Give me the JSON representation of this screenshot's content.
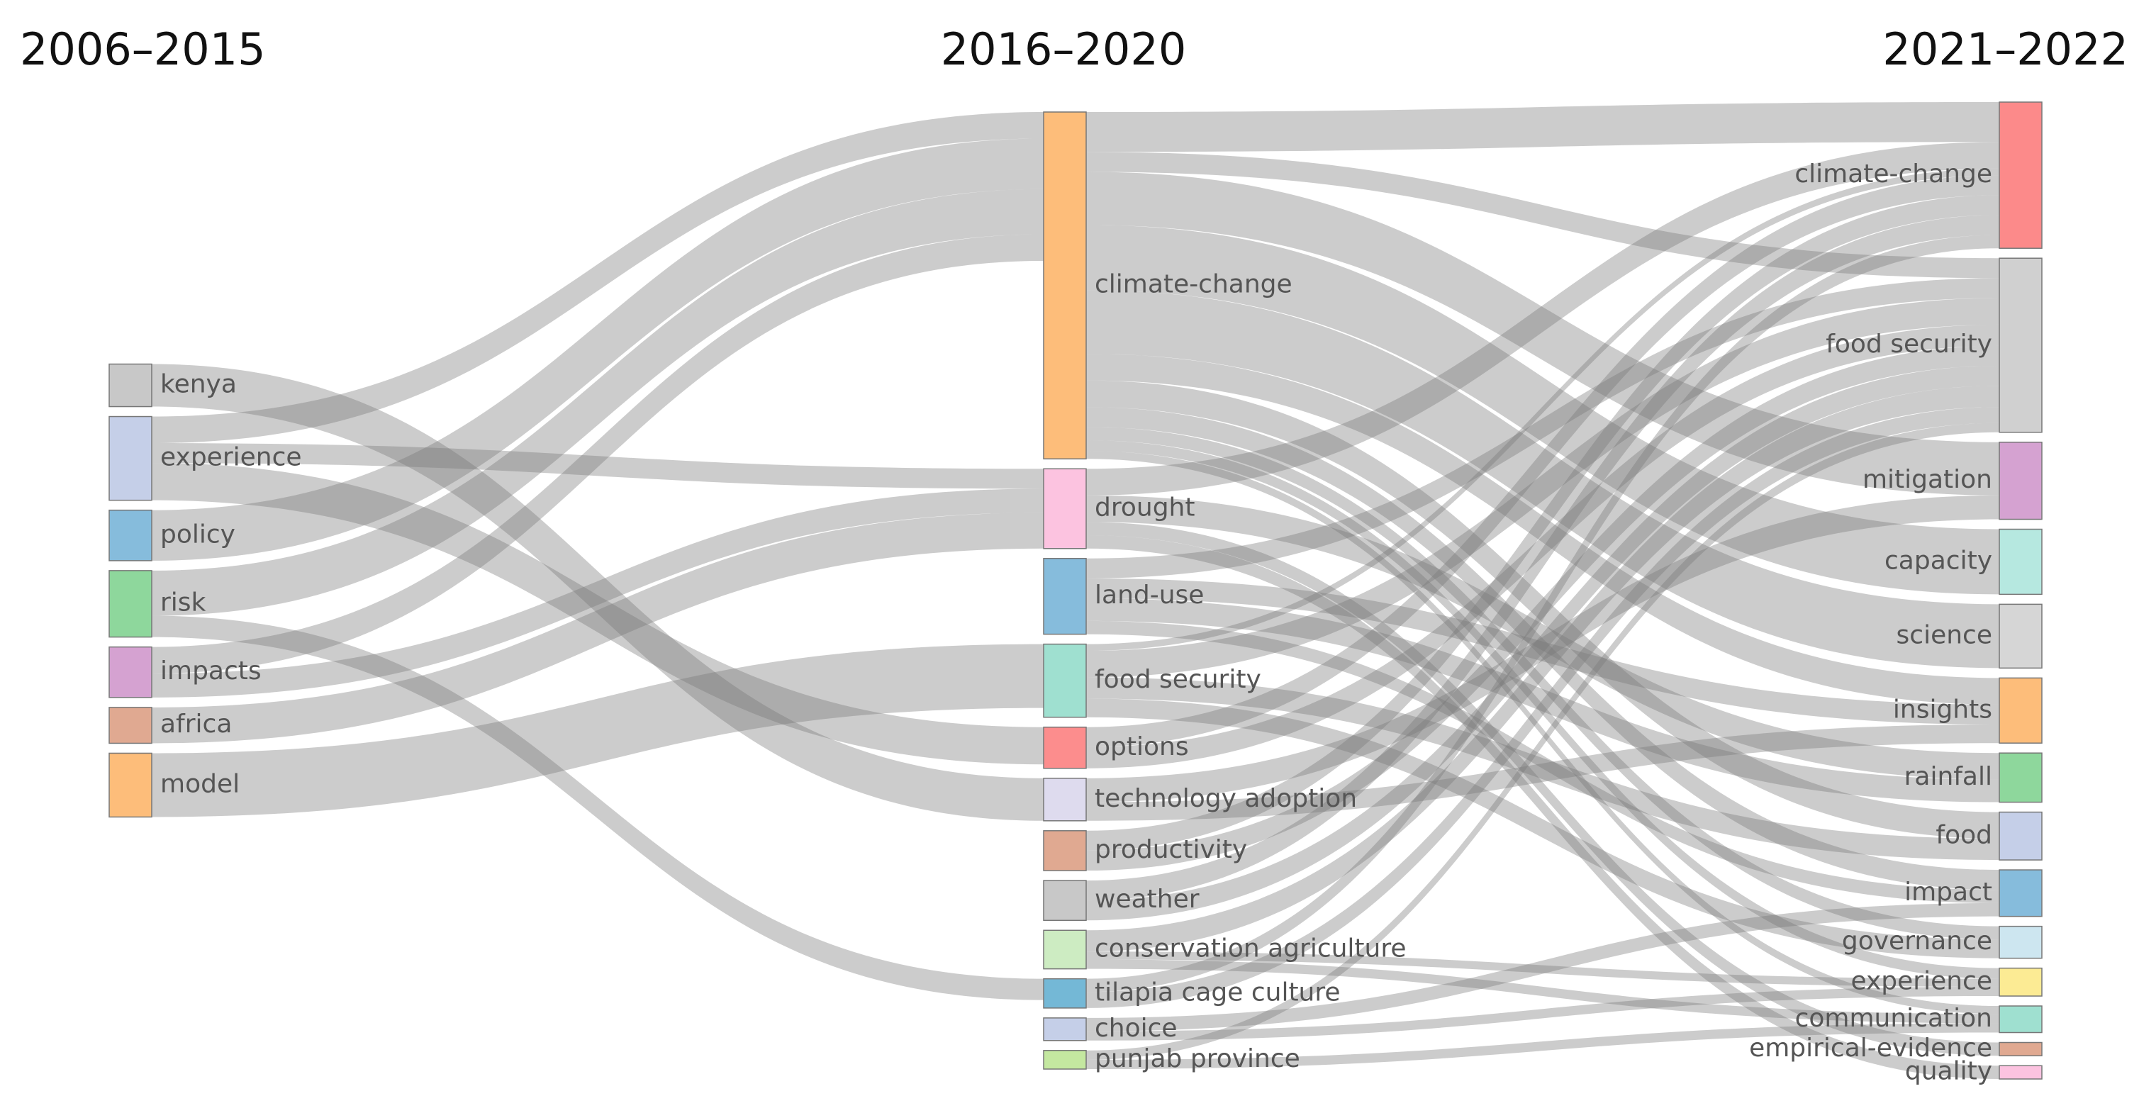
{
  "chart_data": {
    "type": "sankey",
    "columns": [
      "2006–2015",
      "2016–2020",
      "2021–2022"
    ],
    "nodes": [
      {
        "name": "kenya",
        "color": "#c8c8c8",
        "column": 0
      },
      {
        "name": "experience",
        "color": "#c5cfe8",
        "column": 0
      },
      {
        "name": "policy",
        "color": "#86bcdc",
        "column": 0
      },
      {
        "name": "risk",
        "color": "#8ed79c",
        "column": 0
      },
      {
        "name": "impacts",
        "color": "#d5a2d1",
        "column": 0
      },
      {
        "name": "africa",
        "color": "#e0a991",
        "column": 0
      },
      {
        "name": "model",
        "color": "#fdbd7a",
        "column": 0
      },
      {
        "name": "climate-change",
        "color": "#fdbd7a",
        "column": 1
      },
      {
        "name": "drought",
        "color": "#fcc3e0",
        "column": 1
      },
      {
        "name": "land-use",
        "color": "#86bcdc",
        "column": 1
      },
      {
        "name": "food security",
        "color": "#9fe0d0",
        "column": 1
      },
      {
        "name": "options",
        "color": "#fc8d8d",
        "column": 1
      },
      {
        "name": "technology adoption",
        "color": "#dedbee",
        "column": 1
      },
      {
        "name": "productivity",
        "color": "#e0a991",
        "column": 1
      },
      {
        "name": "weather",
        "color": "#c8c8c8",
        "column": 1
      },
      {
        "name": "conservation agriculture",
        "color": "#cdecc2",
        "column": 1
      },
      {
        "name": "tilapia cage culture",
        "color": "#74b8d6",
        "column": 1
      },
      {
        "name": "choice",
        "color": "#c5cfe8",
        "column": 1
      },
      {
        "name": "punjab province",
        "color": "#c4e8a0",
        "column": 1
      },
      {
        "name": "climate-change",
        "color": "#fc8a8a",
        "column": 2
      },
      {
        "name": "food security",
        "color": "#d0d0d0",
        "column": 2
      },
      {
        "name": "mitigation",
        "color": "#d5a2d1",
        "column": 2
      },
      {
        "name": "capacity",
        "color": "#b6e8e0",
        "column": 2
      },
      {
        "name": "science",
        "color": "#d6d6d6",
        "column": 2
      },
      {
        "name": "insights",
        "color": "#fdbd7a",
        "column": 2
      },
      {
        "name": "rainfall",
        "color": "#8ed79c",
        "column": 2
      },
      {
        "name": "food",
        "color": "#c5cfe8",
        "column": 2
      },
      {
        "name": "impact",
        "color": "#86bcdc",
        "column": 2
      },
      {
        "name": "governance",
        "color": "#cde6f0",
        "column": 2
      },
      {
        "name": "experience",
        "color": "#fceb94",
        "column": 2
      },
      {
        "name": "communication",
        "color": "#9fe0d0",
        "column": 2
      },
      {
        "name": "empirical-evidence",
        "color": "#e0a991",
        "column": 2
      },
      {
        "name": "quality",
        "color": "#fcc3e0",
        "column": 2
      }
    ],
    "links": [
      {
        "source": 0,
        "target": 12,
        "value": 32
      },
      {
        "source": 1,
        "target": 7,
        "value": 20
      },
      {
        "source": 1,
        "target": 8,
        "value": 15
      },
      {
        "source": 1,
        "target": 11,
        "value": 28
      },
      {
        "source": 2,
        "target": 7,
        "value": 38
      },
      {
        "source": 3,
        "target": 7,
        "value": 34
      },
      {
        "source": 3,
        "target": 16,
        "value": 16
      },
      {
        "source": 4,
        "target": 7,
        "value": 20
      },
      {
        "source": 4,
        "target": 8,
        "value": 18
      },
      {
        "source": 5,
        "target": 8,
        "value": 27
      },
      {
        "source": 6,
        "target": 10,
        "value": 48
      },
      {
        "source": 7,
        "target": 19,
        "value": 30
      },
      {
        "source": 7,
        "target": 20,
        "value": 15
      },
      {
        "source": 7,
        "target": 21,
        "value": 40
      },
      {
        "source": 7,
        "target": 22,
        "value": 49
      },
      {
        "source": 7,
        "target": 23,
        "value": 48
      },
      {
        "source": 7,
        "target": 24,
        "value": 20
      },
      {
        "source": 7,
        "target": 26,
        "value": 20
      },
      {
        "source": 7,
        "target": 27,
        "value": 15
      },
      {
        "source": 7,
        "target": 28,
        "value": 10
      },
      {
        "source": 7,
        "target": 29,
        "value": 8
      },
      {
        "source": 7,
        "target": 30,
        "value": 6
      },
      {
        "source": 8,
        "target": 19,
        "value": 20
      },
      {
        "source": 8,
        "target": 25,
        "value": 20
      },
      {
        "source": 8,
        "target": 31,
        "value": 10
      },
      {
        "source": 8,
        "target": 32,
        "value": 10
      },
      {
        "source": 9,
        "target": 20,
        "value": 15
      },
      {
        "source": 9,
        "target": 24,
        "value": 15
      },
      {
        "source": 9,
        "target": 25,
        "value": 17
      },
      {
        "source": 9,
        "target": 27,
        "value": 10
      },
      {
        "source": 10,
        "target": 19,
        "value": 5
      },
      {
        "source": 10,
        "target": 20,
        "value": 20
      },
      {
        "source": 10,
        "target": 26,
        "value": 16
      },
      {
        "source": 10,
        "target": 28,
        "value": 14
      },
      {
        "source": 11,
        "target": 19,
        "value": 15
      },
      {
        "source": 11,
        "target": 20,
        "value": 16
      },
      {
        "source": 12,
        "target": 21,
        "value": 18
      },
      {
        "source": 12,
        "target": 24,
        "value": 14
      },
      {
        "source": 13,
        "target": 19,
        "value": 15
      },
      {
        "source": 13,
        "target": 20,
        "value": 15
      },
      {
        "source": 14,
        "target": 19,
        "value": 15
      },
      {
        "source": 14,
        "target": 20,
        "value": 15
      },
      {
        "source": 15,
        "target": 20,
        "value": 16
      },
      {
        "source": 15,
        "target": 29,
        "value": 6
      },
      {
        "source": 15,
        "target": 30,
        "value": 7
      },
      {
        "source": 16,
        "target": 19,
        "value": 10
      },
      {
        "source": 16,
        "target": 20,
        "value": 12
      },
      {
        "source": 17,
        "target": 27,
        "value": 10
      },
      {
        "source": 17,
        "target": 29,
        "value": 7
      },
      {
        "source": 18,
        "target": 20,
        "value": 7
      },
      {
        "source": 18,
        "target": 30,
        "value": 7
      }
    ]
  }
}
